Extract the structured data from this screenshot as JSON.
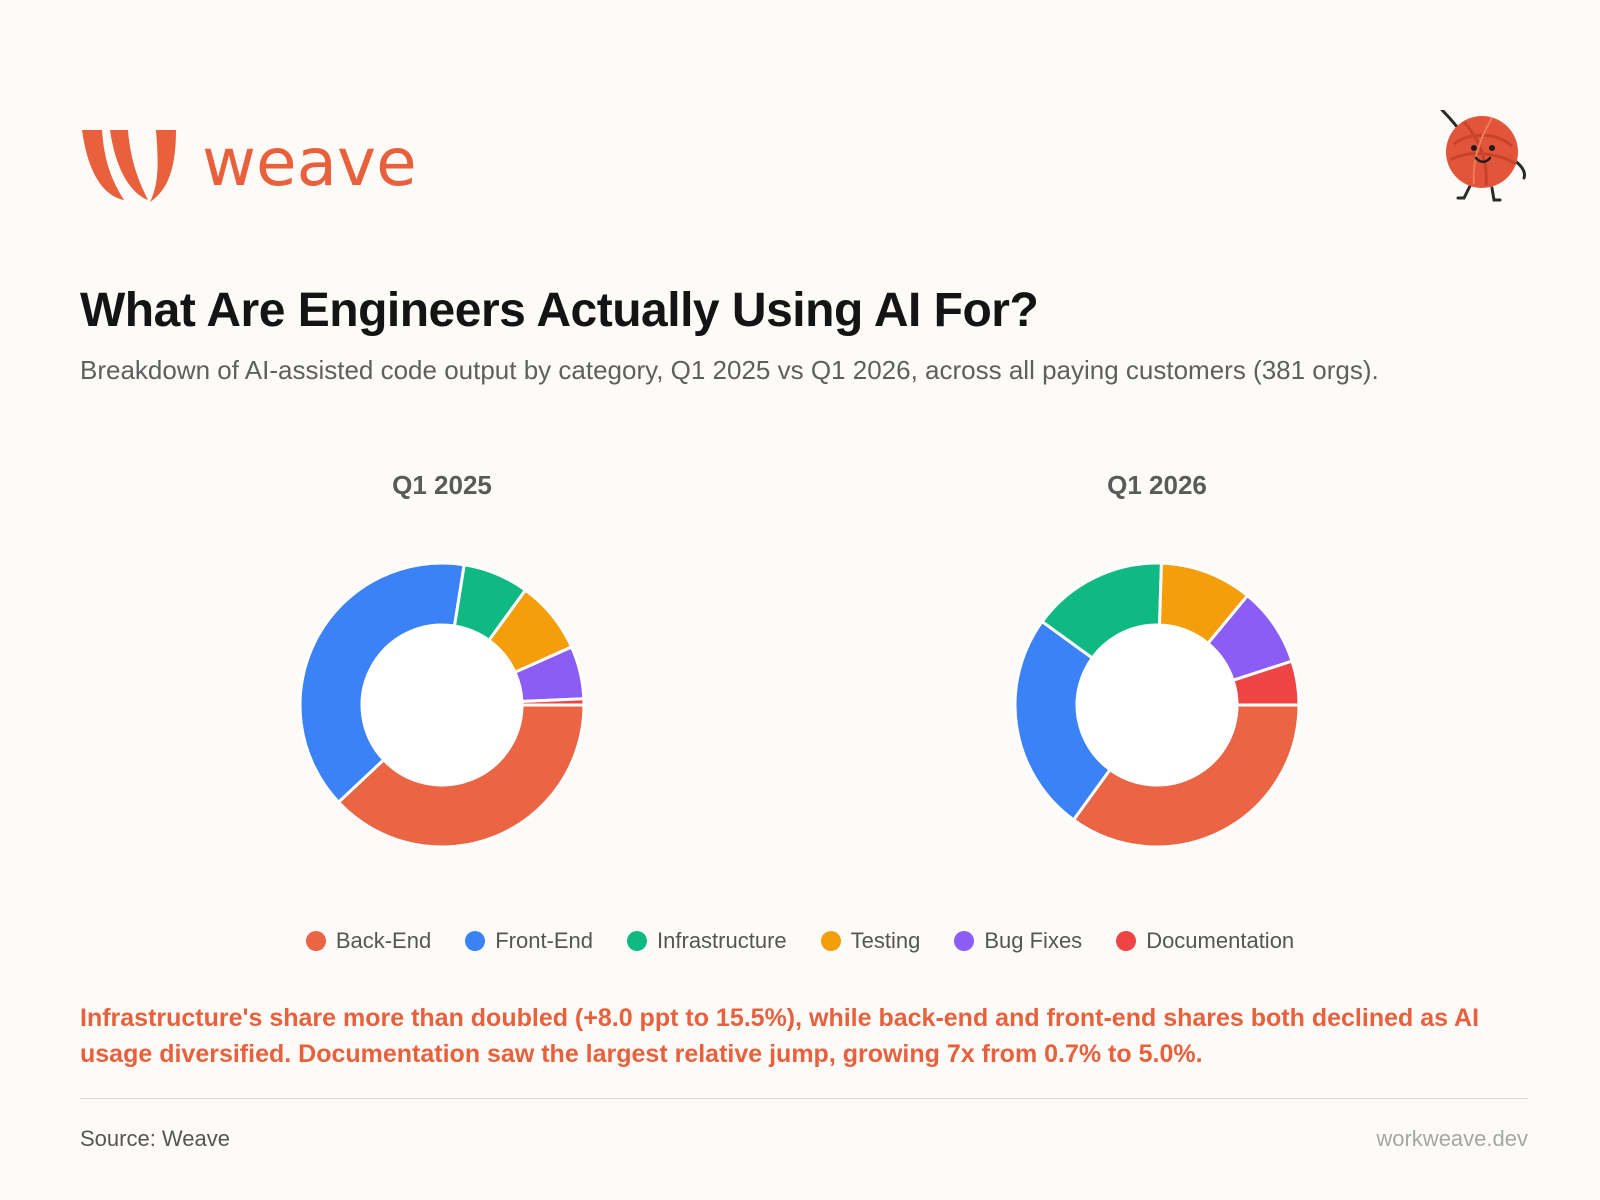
{
  "brand": {
    "name": "weave",
    "accent": "#e9603d"
  },
  "header": {
    "title": "What Are Engineers Actually Using AI For?",
    "subtitle": "Breakdown of AI-assisted code output by category, Q1 2025 vs Q1 2026, across all paying customers (381 orgs)."
  },
  "chart_data": [
    {
      "type": "pie",
      "title": "Q1 2025",
      "categories": [
        "Back-End",
        "Front-End",
        "Infrastructure",
        "Testing",
        "Bug Fixes",
        "Documentation"
      ],
      "values": [
        38.0,
        39.5,
        7.5,
        8.3,
        6.0,
        0.7
      ],
      "colors": [
        "#eb6443",
        "#3b82f6",
        "#10b981",
        "#f59e0b",
        "#8b5cf6",
        "#ef4444"
      ]
    },
    {
      "type": "pie",
      "title": "Q1 2026",
      "categories": [
        "Back-End",
        "Front-End",
        "Infrastructure",
        "Testing",
        "Bug Fixes",
        "Documentation"
      ],
      "values": [
        35.0,
        25.0,
        15.5,
        10.5,
        9.0,
        5.0
      ],
      "colors": [
        "#eb6443",
        "#3b82f6",
        "#10b981",
        "#f59e0b",
        "#8b5cf6",
        "#ef4444"
      ]
    }
  ],
  "legend": [
    {
      "label": "Back-End",
      "color": "#eb6443"
    },
    {
      "label": "Front-End",
      "color": "#3b82f6"
    },
    {
      "label": "Infrastructure",
      "color": "#10b981"
    },
    {
      "label": "Testing",
      "color": "#f59e0b"
    },
    {
      "label": "Bug Fixes",
      "color": "#8b5cf6"
    },
    {
      "label": "Documentation",
      "color": "#ef4444"
    }
  ],
  "insight": "Infrastructure's share more than doubled (+8.0 ppt to 15.5%), while back-end and front-end shares both declined as AI usage diversified. Documentation saw the largest relative jump, growing 7x from 0.7% to 5.0%.",
  "footer": {
    "source": "Source: Weave",
    "site": "workweave.dev"
  }
}
